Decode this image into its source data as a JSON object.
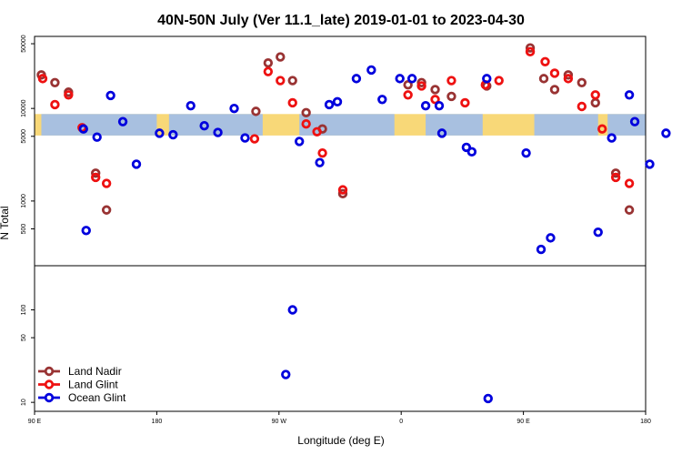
{
  "chart_data": {
    "type": "scatter",
    "title": "40N-50N July (Ver 11.1_late)   2019-01-01 to 2023-04-30",
    "xlabel": "Longitude (deg E)",
    "ylabel": "N Total",
    "x_ticks": [
      {
        "value": 90,
        "label": "90 E"
      },
      {
        "value": 180,
        "label": "180"
      },
      {
        "value": 270,
        "label": "90 W"
      },
      {
        "value": 360,
        "label": "0"
      },
      {
        "value": 450,
        "label": "90 E"
      },
      {
        "value": 540,
        "label": "180"
      }
    ],
    "xlim": [
      90,
      540
    ],
    "upper_panel": {
      "scale": "log",
      "ylim": [
        200,
        60000
      ],
      "y_ticks": [
        500,
        1000,
        5000,
        10000,
        50000
      ],
      "land_band_color": "#f8d878",
      "ocean_band_color": "#a8c0e0"
    },
    "lower_panel": {
      "scale": "log",
      "ylim": [
        8,
        300
      ],
      "y_ticks": [
        10,
        50,
        100
      ]
    },
    "legend_position": "bottom-left",
    "series": [
      {
        "name": "Land Nadir",
        "color": "#993333",
        "points": [
          {
            "x": 95,
            "y": 23000
          },
          {
            "x": 105,
            "y": 19000
          },
          {
            "x": 115,
            "y": 15000
          },
          {
            "x": 135,
            "y": 2000
          },
          {
            "x": 143,
            "y": 800
          },
          {
            "x": 253,
            "y": 9300
          },
          {
            "x": 262,
            "y": 31000
          },
          {
            "x": 271,
            "y": 36000
          },
          {
            "x": 280,
            "y": 20000
          },
          {
            "x": 290,
            "y": 9000
          },
          {
            "x": 302,
            "y": 6000
          },
          {
            "x": 317,
            "y": 1200
          },
          {
            "x": 365,
            "y": 18000
          },
          {
            "x": 375,
            "y": 19000
          },
          {
            "x": 385,
            "y": 16000
          },
          {
            "x": 397,
            "y": 13500
          },
          {
            "x": 423,
            "y": 17500
          },
          {
            "x": 455,
            "y": 45000
          },
          {
            "x": 465,
            "y": 21000
          },
          {
            "x": 473,
            "y": 16000
          },
          {
            "x": 483,
            "y": 23000
          },
          {
            "x": 493,
            "y": 19000
          },
          {
            "x": 503,
            "y": 11500
          },
          {
            "x": 518,
            "y": 2000
          },
          {
            "x": 528,
            "y": 800
          }
        ]
      },
      {
        "name": "Land Glint",
        "color": "#ee1111",
        "points": [
          {
            "x": 96,
            "y": 21000
          },
          {
            "x": 105,
            "y": 11000
          },
          {
            "x": 115,
            "y": 14000
          },
          {
            "x": 125,
            "y": 6200
          },
          {
            "x": 135,
            "y": 1800
          },
          {
            "x": 143,
            "y": 1550
          },
          {
            "x": 252,
            "y": 4700
          },
          {
            "x": 262,
            "y": 25000
          },
          {
            "x": 271,
            "y": 20000
          },
          {
            "x": 280,
            "y": 11500
          },
          {
            "x": 290,
            "y": 6800
          },
          {
            "x": 298,
            "y": 5600
          },
          {
            "x": 302,
            "y": 3300
          },
          {
            "x": 317,
            "y": 1320
          },
          {
            "x": 365,
            "y": 14000
          },
          {
            "x": 375,
            "y": 17500
          },
          {
            "x": 385,
            "y": 12500
          },
          {
            "x": 397,
            "y": 20000
          },
          {
            "x": 407,
            "y": 11500
          },
          {
            "x": 422,
            "y": 18000
          },
          {
            "x": 432,
            "y": 20000
          },
          {
            "x": 455,
            "y": 41000
          },
          {
            "x": 466,
            "y": 32000
          },
          {
            "x": 473,
            "y": 24000
          },
          {
            "x": 483,
            "y": 21000
          },
          {
            "x": 493,
            "y": 10500
          },
          {
            "x": 503,
            "y": 14000
          },
          {
            "x": 508,
            "y": 6000
          },
          {
            "x": 518,
            "y": 1800
          },
          {
            "x": 528,
            "y": 1550
          }
        ]
      },
      {
        "name": "Ocean Glint",
        "color": "#0000dd",
        "points": [
          {
            "x": 126,
            "y": 6000
          },
          {
            "x": 128,
            "y": 480
          },
          {
            "x": 136,
            "y": 4900
          },
          {
            "x": 146,
            "y": 13800
          },
          {
            "x": 155,
            "y": 7200
          },
          {
            "x": 165,
            "y": 2500
          },
          {
            "x": 182,
            "y": 5400
          },
          {
            "x": 192,
            "y": 5200
          },
          {
            "x": 205,
            "y": 10700
          },
          {
            "x": 215,
            "y": 6500
          },
          {
            "x": 225,
            "y": 5500
          },
          {
            "x": 237,
            "y": 10000
          },
          {
            "x": 245,
            "y": 4800
          },
          {
            "x": 285,
            "y": 4400
          },
          {
            "x": 300,
            "y": 2600
          },
          {
            "x": 307,
            "y": 11000
          },
          {
            "x": 313,
            "y": 11800
          },
          {
            "x": 327,
            "y": 21000
          },
          {
            "x": 338,
            "y": 26000
          },
          {
            "x": 346,
            "y": 12500
          },
          {
            "x": 359,
            "y": 21000
          },
          {
            "x": 368,
            "y": 21000
          },
          {
            "x": 378,
            "y": 10700
          },
          {
            "x": 388,
            "y": 10700
          },
          {
            "x": 390,
            "y": 5400
          },
          {
            "x": 408,
            "y": 3800
          },
          {
            "x": 412,
            "y": 3400
          },
          {
            "x": 423,
            "y": 21000
          },
          {
            "x": 452,
            "y": 3300
          },
          {
            "x": 463,
            "y": 300
          },
          {
            "x": 470,
            "y": 400
          },
          {
            "x": 505,
            "y": 460
          },
          {
            "x": 515,
            "y": 4800
          },
          {
            "x": 528,
            "y": 14000
          },
          {
            "x": 532,
            "y": 7200
          },
          {
            "x": 543,
            "y": 2500
          },
          {
            "x": 555,
            "y": 5400
          }
        ]
      }
    ],
    "lower_series": [
      {
        "name": "Ocean Glint",
        "color": "#0000dd",
        "points": [
          {
            "x": 280,
            "y": 100
          },
          {
            "x": 275,
            "y": 20
          },
          {
            "x": 424,
            "y": 11
          }
        ]
      }
    ]
  }
}
